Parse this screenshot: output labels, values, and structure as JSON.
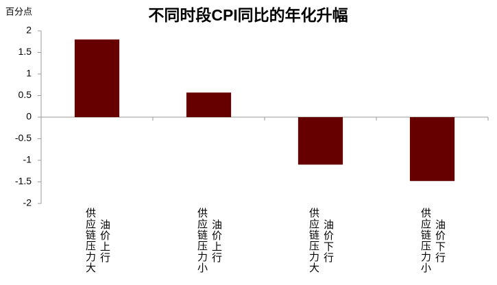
{
  "chart_data": {
    "type": "bar",
    "title": "不同时段CPI同比的年化升幅",
    "y_label": "百分点",
    "categories": [
      [
        "供应链压力大",
        "油价上行"
      ],
      [
        "供应链压力小",
        "油价上行"
      ],
      [
        "供应链压力大",
        "油价下行"
      ],
      [
        "供应链压力小",
        "油价下行"
      ]
    ],
    "values": [
      1.8,
      0.57,
      -1.1,
      -1.48
    ],
    "color": "#660000",
    "ylim": [
      -2,
      2
    ],
    "yticks": [
      -2,
      -1.5,
      -1,
      -0.5,
      0,
      0.5,
      1,
      1.5,
      2
    ],
    "grid": false
  }
}
